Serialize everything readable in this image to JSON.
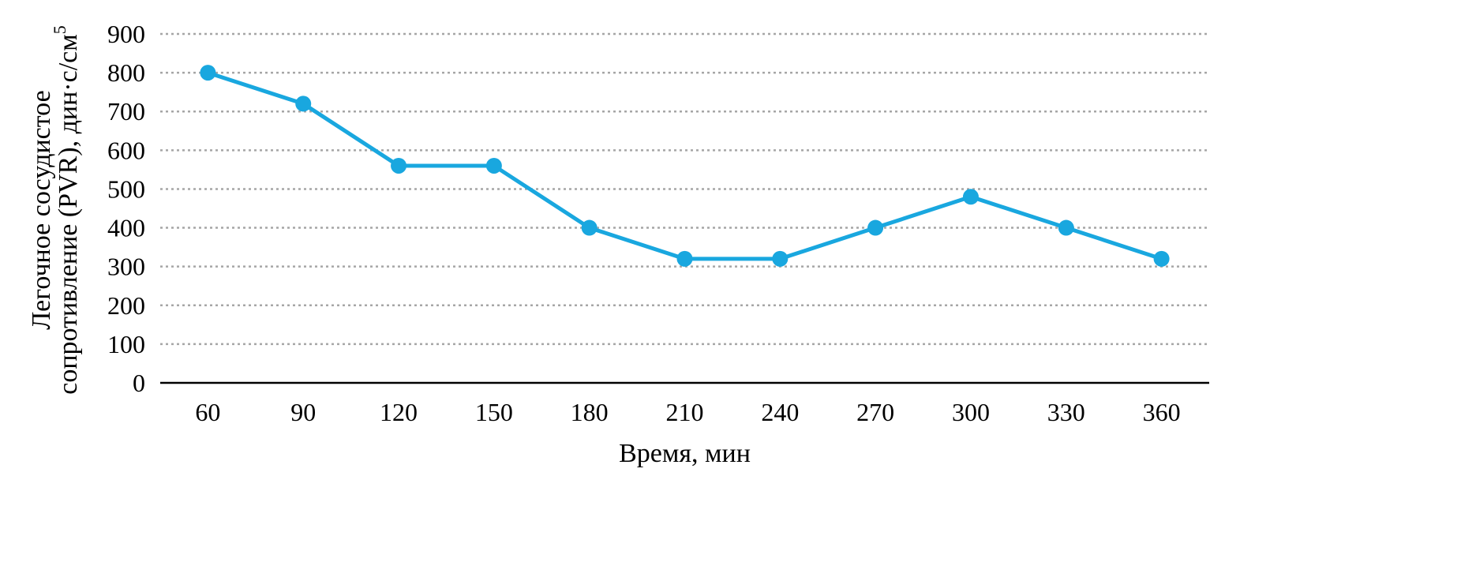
{
  "chart_data": {
    "type": "line",
    "title": "",
    "xlabel": "Время, мин",
    "ylabel_line1": "Легочное сосудистое",
    "ylabel_line2": "сопротивление (PVR), дин·с/см",
    "ylabel_superscript": "5",
    "categories": [
      "60",
      "90",
      "120",
      "150",
      "180",
      "210",
      "240",
      "270",
      "300",
      "330",
      "360"
    ],
    "series": [
      {
        "values": [
          800,
          720,
          560,
          560,
          400,
          320,
          320,
          400,
          480,
          400,
          320
        ]
      }
    ],
    "ylim": [
      0,
      900
    ],
    "yticks": [
      "0",
      "100",
      "200",
      "300",
      "400",
      "500",
      "600",
      "700",
      "800",
      "900"
    ],
    "grid": "horizontal dotted",
    "legend": "none",
    "colors": {
      "series": "#19a7df",
      "grid": "#a6a6a6",
      "axis": "#000000"
    }
  }
}
